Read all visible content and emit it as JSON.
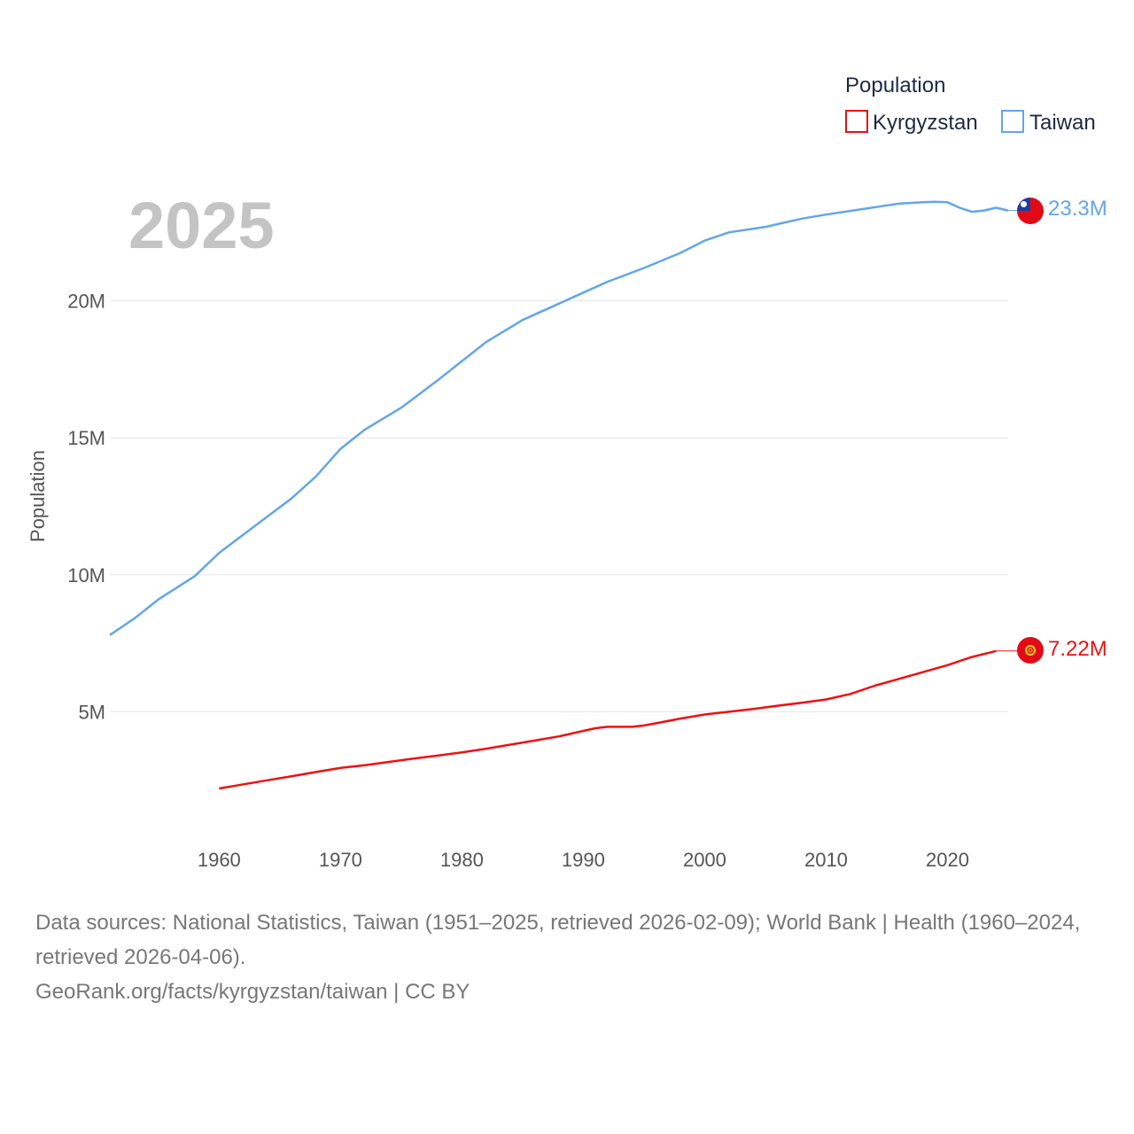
{
  "chart_data": {
    "type": "line",
    "year_label": "2025",
    "ylabel": "Population",
    "xlabel": "",
    "legend_title": "Population",
    "xlim": [
      1951,
      2025
    ],
    "ylim": [
      0,
      25000000
    ],
    "x_ticks": [
      1960,
      1970,
      1980,
      1990,
      2000,
      2010,
      2020
    ],
    "x_tick_labels": [
      "1960",
      "1970",
      "1980",
      "1990",
      "2000",
      "2010",
      "2020"
    ],
    "y_ticks": [
      5000000,
      10000000,
      15000000,
      20000000
    ],
    "y_tick_labels": [
      "5M",
      "10M",
      "15M",
      "20M"
    ],
    "series": [
      {
        "name": "Kyrgyzstan",
        "color": "#ee1111",
        "end_label": "7.22M",
        "flag_icon": "kyrgyzstan-flag-icon",
        "points": [
          [
            1960,
            2200000
          ],
          [
            1962,
            2350000
          ],
          [
            1964,
            2500000
          ],
          [
            1966,
            2650000
          ],
          [
            1968,
            2800000
          ],
          [
            1970,
            2950000
          ],
          [
            1972,
            3050000
          ],
          [
            1974,
            3170000
          ],
          [
            1976,
            3290000
          ],
          [
            1978,
            3400000
          ],
          [
            1980,
            3520000
          ],
          [
            1982,
            3650000
          ],
          [
            1984,
            3800000
          ],
          [
            1986,
            3950000
          ],
          [
            1988,
            4100000
          ],
          [
            1990,
            4300000
          ],
          [
            1991,
            4400000
          ],
          [
            1992,
            4450000
          ],
          [
            1993,
            4450000
          ],
          [
            1994,
            4450000
          ],
          [
            1995,
            4500000
          ],
          [
            1996,
            4580000
          ],
          [
            1998,
            4750000
          ],
          [
            2000,
            4900000
          ],
          [
            2002,
            5000000
          ],
          [
            2004,
            5100000
          ],
          [
            2006,
            5220000
          ],
          [
            2008,
            5330000
          ],
          [
            2010,
            5450000
          ],
          [
            2012,
            5650000
          ],
          [
            2014,
            5950000
          ],
          [
            2016,
            6200000
          ],
          [
            2018,
            6450000
          ],
          [
            2020,
            6700000
          ],
          [
            2022,
            7000000
          ],
          [
            2024,
            7220000
          ]
        ]
      },
      {
        "name": "Taiwan",
        "color": "#63a6e6",
        "end_label": "23.3M",
        "flag_icon": "taiwan-flag-icon",
        "points": [
          [
            1951,
            7800000
          ],
          [
            1953,
            8400000
          ],
          [
            1955,
            9100000
          ],
          [
            1958,
            9950000
          ],
          [
            1960,
            10800000
          ],
          [
            1963,
            11800000
          ],
          [
            1966,
            12800000
          ],
          [
            1968,
            13600000
          ],
          [
            1970,
            14600000
          ],
          [
            1972,
            15300000
          ],
          [
            1975,
            16100000
          ],
          [
            1978,
            17100000
          ],
          [
            1980,
            17800000
          ],
          [
            1982,
            18500000
          ],
          [
            1985,
            19300000
          ],
          [
            1988,
            19900000
          ],
          [
            1990,
            20300000
          ],
          [
            1992,
            20700000
          ],
          [
            1995,
            21200000
          ],
          [
            1998,
            21750000
          ],
          [
            2000,
            22200000
          ],
          [
            2002,
            22500000
          ],
          [
            2005,
            22700000
          ],
          [
            2008,
            23000000
          ],
          [
            2010,
            23150000
          ],
          [
            2013,
            23350000
          ],
          [
            2016,
            23550000
          ],
          [
            2018,
            23600000
          ],
          [
            2019,
            23620000
          ],
          [
            2020,
            23600000
          ],
          [
            2021,
            23400000
          ],
          [
            2022,
            23250000
          ],
          [
            2023,
            23300000
          ],
          [
            2024,
            23400000
          ],
          [
            2025,
            23300000
          ]
        ]
      }
    ]
  },
  "footer": {
    "sources": "Data sources: National Statistics, Taiwan (1951–2025, retrieved 2026-02-09); World Bank | Health (1960–2024, retrieved 2026-04-06).",
    "credit": "GeoRank.org/facts/kyrgyzstan/taiwan | CC BY"
  }
}
